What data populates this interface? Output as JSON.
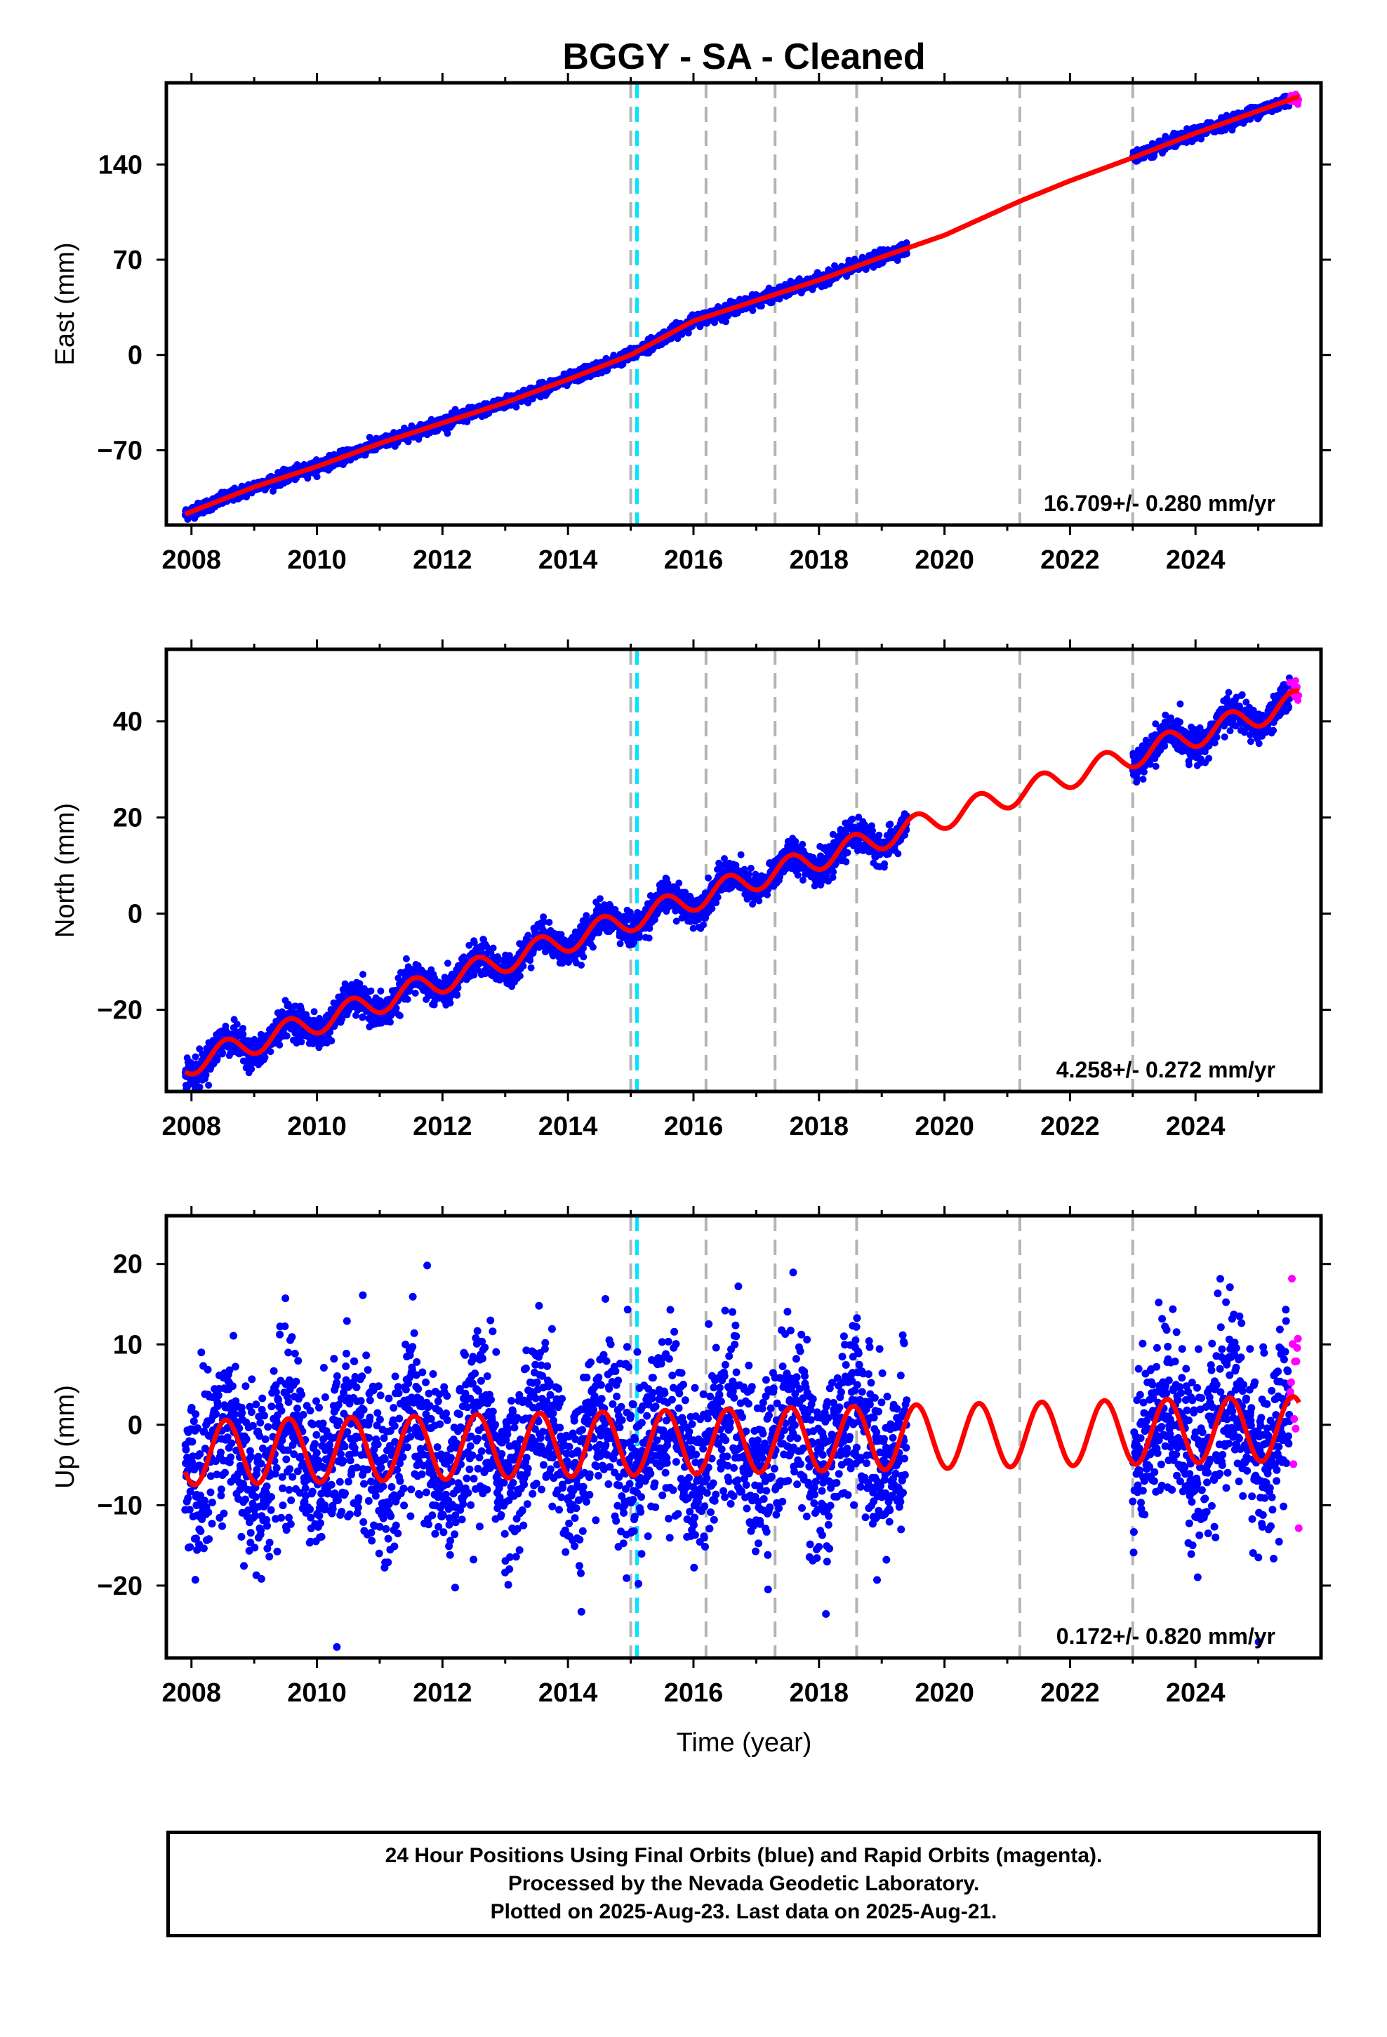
{
  "chart_data": [
    {
      "type": "scatter",
      "title": "BGGY  - SA - Cleaned",
      "xlabel": "",
      "ylabel": "East (mm)",
      "xlim": [
        2007.6,
        2026.0
      ],
      "ylim": [
        -125,
        200
      ],
      "x_ticks": [
        2008,
        2010,
        2012,
        2014,
        2016,
        2018,
        2020,
        2022,
        2024
      ],
      "y_ticks": [
        -70,
        0,
        70,
        140
      ],
      "rate_text": "16.709+/- 0.280 mm/yr",
      "series": [
        {
          "name": "Final Orbits (blue)",
          "color": "#0000ff",
          "kind": "points",
          "segments": [
            [
              2007.9,
              2019.4
            ],
            [
              2023.0,
              2025.5
            ]
          ]
        },
        {
          "name": "Rapid Orbits (magenta)",
          "color": "#ff00ff",
          "kind": "points",
          "segments": [
            [
              2025.5,
              2025.65
            ]
          ]
        },
        {
          "name": "model",
          "color": "#ff0000",
          "kind": "line",
          "x": [
            2007.9,
            2009.0,
            2010.0,
            2011.0,
            2012.0,
            2013.0,
            2014.0,
            2015.0,
            2016.0,
            2017.0,
            2018.0,
            2019.0,
            2020.0,
            2021.2,
            2022.0,
            2023.0,
            2024.0,
            2025.65
          ],
          "y": [
            -117,
            -97,
            -82,
            -65,
            -50,
            -35,
            -18,
            0,
            25,
            40,
            55,
            72,
            88,
            113,
            128,
            145,
            163,
            190
          ]
        }
      ],
      "breaks_gray": [
        2015.0,
        2016.2,
        2017.3,
        2018.6,
        2021.2,
        2023.0
      ],
      "breaks_cyan": [
        2015.1
      ]
    },
    {
      "type": "scatter",
      "title": "",
      "xlabel": "",
      "ylabel": "North (mm)",
      "xlim": [
        2007.6,
        2026.0
      ],
      "ylim": [
        -37,
        55
      ],
      "x_ticks": [
        2008,
        2010,
        2012,
        2014,
        2016,
        2018,
        2020,
        2022,
        2024
      ],
      "y_ticks": [
        -20,
        0,
        20,
        40
      ],
      "rate_text": "4.258+/- 0.272 mm/yr",
      "trend": {
        "x0": 2008.0,
        "y0": -31,
        "slope": 4.258,
        "season_amp": 2.5
      },
      "series": [
        {
          "name": "Final Orbits (blue)",
          "color": "#0000ff",
          "kind": "points",
          "segments": [
            [
              2007.9,
              2019.4
            ],
            [
              2023.0,
              2025.5
            ]
          ]
        },
        {
          "name": "Rapid Orbits (magenta)",
          "color": "#ff00ff",
          "kind": "points",
          "segments": [
            [
              2025.5,
              2025.65
            ]
          ]
        },
        {
          "name": "model",
          "color": "#ff0000",
          "kind": "line"
        }
      ],
      "breaks_gray": [
        2015.0,
        2016.2,
        2017.3,
        2018.6,
        2021.2,
        2023.0
      ],
      "breaks_cyan": [
        2015.1
      ]
    },
    {
      "type": "scatter",
      "title": "",
      "xlabel": "Time (year)",
      "ylabel": "Up (mm)",
      "xlim": [
        2007.6,
        2026.0
      ],
      "ylim": [
        -29,
        26
      ],
      "x_ticks": [
        2008,
        2010,
        2012,
        2014,
        2016,
        2018,
        2020,
        2022,
        2024
      ],
      "y_ticks": [
        -20,
        -10,
        0,
        10,
        20
      ],
      "rate_text": "0.172+/- 0.820 mm/yr",
      "trend": {
        "x0": 2008.0,
        "y0": -3.5,
        "slope": 0.172,
        "season_amp": 4
      },
      "series": [
        {
          "name": "Final Orbits (blue)",
          "color": "#0000ff",
          "kind": "points",
          "segments": [
            [
              2007.9,
              2019.4
            ],
            [
              2023.0,
              2025.5
            ]
          ]
        },
        {
          "name": "Rapid Orbits (magenta)",
          "color": "#ff00ff",
          "kind": "points",
          "segments": [
            [
              2025.5,
              2025.65
            ]
          ]
        },
        {
          "name": "model",
          "color": "#ff0000",
          "kind": "line"
        }
      ],
      "breaks_gray": [
        2015.0,
        2016.2,
        2017.3,
        2018.6,
        2021.2,
        2023.0
      ],
      "breaks_cyan": [
        2015.1
      ]
    }
  ],
  "caption": {
    "line1": "24 Hour Positions Using Final Orbits (blue) and Rapid Orbits (magenta).",
    "line2": "Processed by the Nevada Geodetic Laboratory.",
    "line3": "Plotted on 2025-Aug-23. Last data on 2025-Aug-21."
  }
}
